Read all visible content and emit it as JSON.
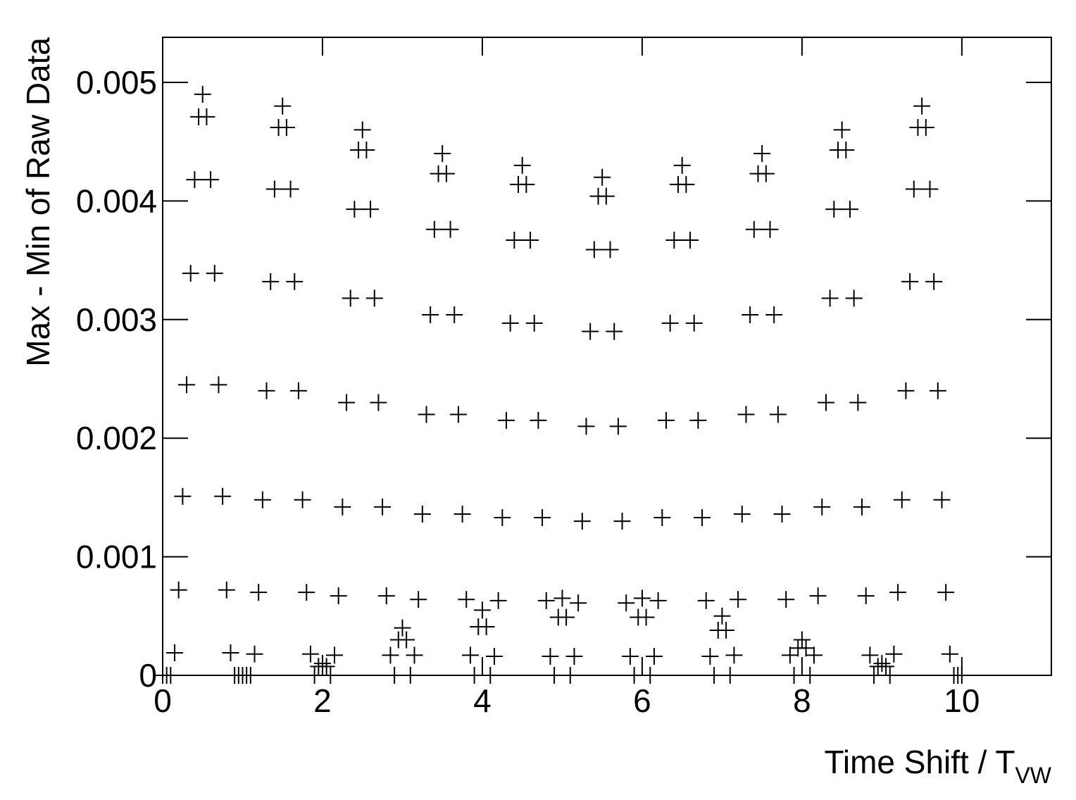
{
  "chart_data": {
    "type": "scatter",
    "xlabel": "Time Shift / T",
    "xlabel_subscript": "VW",
    "ylabel": "Max - Min of Raw Data",
    "color": "#000000",
    "xlim": [
      0,
      11.12
    ],
    "xticks": [
      0,
      2,
      4,
      6,
      8,
      10
    ],
    "ylim": [
      0,
      0.00538
    ],
    "yticks": [
      0,
      0.001,
      0.002,
      0.003,
      0.004,
      0.005
    ],
    "x": [
      0,
      0.05,
      0.1,
      0.15,
      0.2,
      0.25,
      0.3,
      0.35,
      0.4,
      0.45,
      0.5,
      0.55,
      0.6,
      0.65,
      0.7,
      0.75,
      0.8,
      0.85,
      0.9,
      0.95,
      1,
      1.05,
      1.1,
      1.15,
      1.2,
      1.25,
      1.3,
      1.35,
      1.4,
      1.45,
      1.5,
      1.55,
      1.6,
      1.65,
      1.7,
      1.75,
      1.8,
      1.85,
      1.9,
      1.95,
      2,
      2.05,
      2.1,
      2.15,
      2.2,
      2.25,
      2.3,
      2.35,
      2.4,
      2.45,
      2.5,
      2.55,
      2.6,
      2.65,
      2.7,
      2.75,
      2.8,
      2.85,
      2.9,
      2.95,
      3,
      3.05,
      3.1,
      3.15,
      3.2,
      3.25,
      3.3,
      3.35,
      3.4,
      3.45,
      3.5,
      3.55,
      3.6,
      3.65,
      3.7,
      3.75,
      3.8,
      3.85,
      3.9,
      3.95,
      4,
      4.05,
      4.1,
      4.15,
      4.2,
      4.25,
      4.3,
      4.35,
      4.4,
      4.45,
      4.5,
      4.55,
      4.6,
      4.65,
      4.7,
      4.75,
      4.8,
      4.85,
      4.9,
      4.95,
      5,
      5.05,
      5.1,
      5.15,
      5.2,
      5.25,
      5.3,
      5.35,
      5.4,
      5.45,
      5.5,
      5.55,
      5.6,
      5.65,
      5.7,
      5.75,
      5.8,
      5.85,
      5.9,
      5.95,
      6,
      6.05,
      6.1,
      6.15,
      6.2,
      6.25,
      6.3,
      6.35,
      6.4,
      6.45,
      6.5,
      6.55,
      6.6,
      6.65,
      6.7,
      6.75,
      6.8,
      6.85,
      6.9,
      6.95,
      7,
      7.05,
      7.1,
      7.15,
      7.2,
      7.25,
      7.3,
      7.35,
      7.4,
      7.45,
      7.5,
      7.55,
      7.6,
      7.65,
      7.7,
      7.75,
      7.8,
      7.85,
      7.9,
      7.95,
      8,
      8.05,
      8.1,
      8.15,
      8.2,
      8.25,
      8.3,
      8.35,
      8.4,
      8.45,
      8.5,
      8.55,
      8.6,
      8.65,
      8.7,
      8.75,
      8.8,
      8.85,
      8.9,
      8.95,
      9,
      9.05,
      9.1,
      9.15,
      9.2,
      9.25,
      9.3,
      9.35,
      9.4,
      9.45,
      9.5,
      9.55,
      9.6,
      9.65,
      9.7,
      9.75,
      9.8,
      9.85,
      9.9,
      9.95,
      10
    ],
    "values": [
      0,
      0,
      0,
      0.00019,
      0.00072,
      0.00151,
      0.00245,
      0.00339,
      0.00418,
      0.00471,
      0.0049,
      0.00471,
      0.00418,
      0.00339,
      0.00245,
      0.00151,
      0.00072,
      0.00019,
      0,
      0,
      0,
      0,
      0,
      0.00018,
      0.0007,
      0.00148,
      0.0024,
      0.00332,
      0.0041,
      0.00462,
      0.0048,
      0.00462,
      0.0041,
      0.00332,
      0.0024,
      0.00148,
      0.0007,
      0.00018,
      0,
      7.5e-05,
      0.0001,
      7.5e-05,
      0,
      0.00017,
      0.00067,
      0.00142,
      0.0023,
      0.00318,
      0.00393,
      0.00443,
      0.0046,
      0.00443,
      0.00393,
      0.00318,
      0.0023,
      0.00142,
      0.00067,
      0.00017,
      0,
      0.0003,
      0.0004,
      0.0003,
      0,
      0.00017,
      0.00064,
      0.00136,
      0.0022,
      0.00304,
      0.00376,
      0.00423,
      0.0044,
      0.00423,
      0.00376,
      0.00304,
      0.0022,
      0.00136,
      0.00064,
      0.00017,
      0,
      0.00041,
      0.00055,
      0.00041,
      0,
      0.00016,
      0.00063,
      0.00133,
      0.00215,
      0.00297,
      0.00367,
      0.00414,
      0.0043,
      0.00414,
      0.00367,
      0.00297,
      0.00215,
      0.00133,
      0.00063,
      0.00016,
      0,
      0.00049,
      0.00065,
      0.00049,
      0,
      0.00016,
      0.00061,
      0.0013,
      0.0021,
      0.0029,
      0.00359,
      0.00404,
      0.0042,
      0.00404,
      0.00359,
      0.0029,
      0.0021,
      0.0013,
      0.00061,
      0.00016,
      0,
      0.00049,
      0.00065,
      0.00049,
      0,
      0.00016,
      0.00063,
      0.00133,
      0.00215,
      0.00297,
      0.00367,
      0.00414,
      0.0043,
      0.00414,
      0.00367,
      0.00297,
      0.00215,
      0.00133,
      0.00063,
      0.00016,
      0,
      0.00038,
      0.0005,
      0.00038,
      0,
      0.00017,
      0.00064,
      0.00136,
      0.0022,
      0.00304,
      0.00376,
      0.00423,
      0.0044,
      0.00423,
      0.00376,
      0.00304,
      0.0022,
      0.00136,
      0.00064,
      0.00017,
      0,
      0.00023,
      0.0003,
      0.00023,
      0,
      0.00017,
      0.00067,
      0.00142,
      0.0023,
      0.00318,
      0.00393,
      0.00443,
      0.0046,
      0.00443,
      0.00393,
      0.00318,
      0.0023,
      0.00142,
      0.00067,
      0.00017,
      0,
      7.5e-05,
      0.0001,
      7.5e-05,
      0,
      0.00018,
      0.0007,
      0.00148,
      0.0024,
      0.00332,
      0.0041,
      0.00462,
      0.0048,
      0.00462,
      0.0041,
      0.00332,
      0.0024,
      0.00148,
      0.0007,
      0.00018,
      0,
      0,
      0
    ]
  }
}
